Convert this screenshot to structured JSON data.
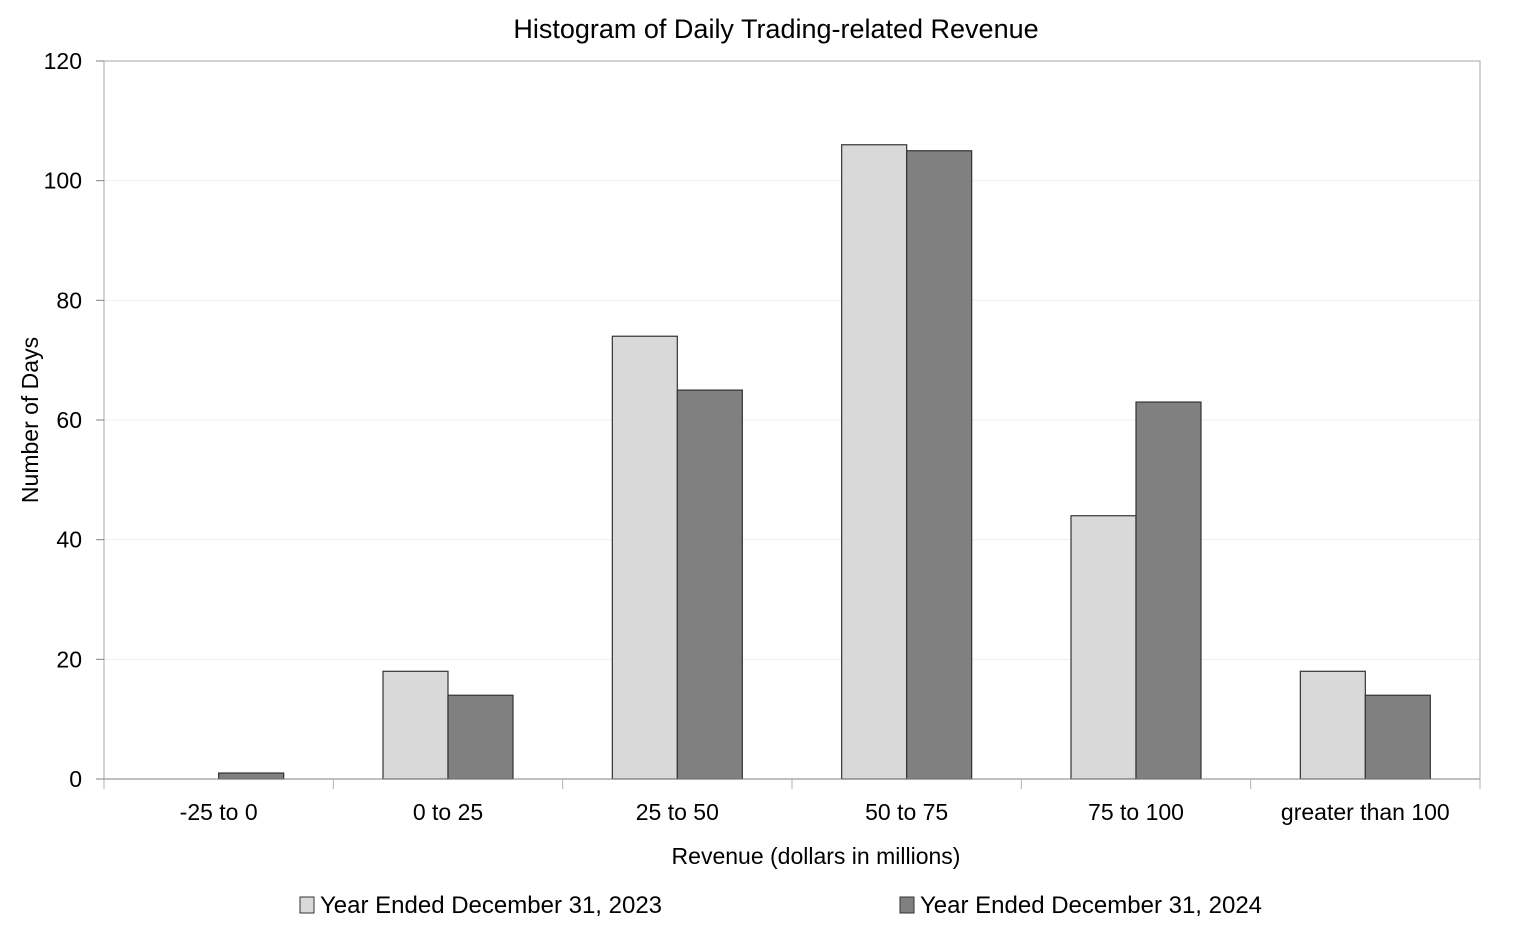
{
  "chart_data": {
    "type": "bar",
    "title": "Histogram of Daily Trading-related Revenue",
    "xlabel": "Revenue (dollars in millions)",
    "ylabel": "Number of Days",
    "ylim": [
      0,
      120
    ],
    "yticks": [
      "0",
      "20",
      "40",
      "60",
      "80",
      "100",
      "120"
    ],
    "grid": true,
    "legend_position": "bottom",
    "categories": [
      "-25 to 0",
      "0 to 25",
      "25 to 50",
      "50 to 75",
      "75 to 100",
      "greater than 100"
    ],
    "series": [
      {
        "name": "Year Ended December 31, 2023",
        "color": "#d9d9d9",
        "values": [
          0,
          18,
          74,
          106,
          44,
          18
        ]
      },
      {
        "name": "Year Ended December 31, 2024",
        "color": "#808080",
        "values": [
          1,
          14,
          65,
          105,
          63,
          14
        ]
      }
    ]
  }
}
